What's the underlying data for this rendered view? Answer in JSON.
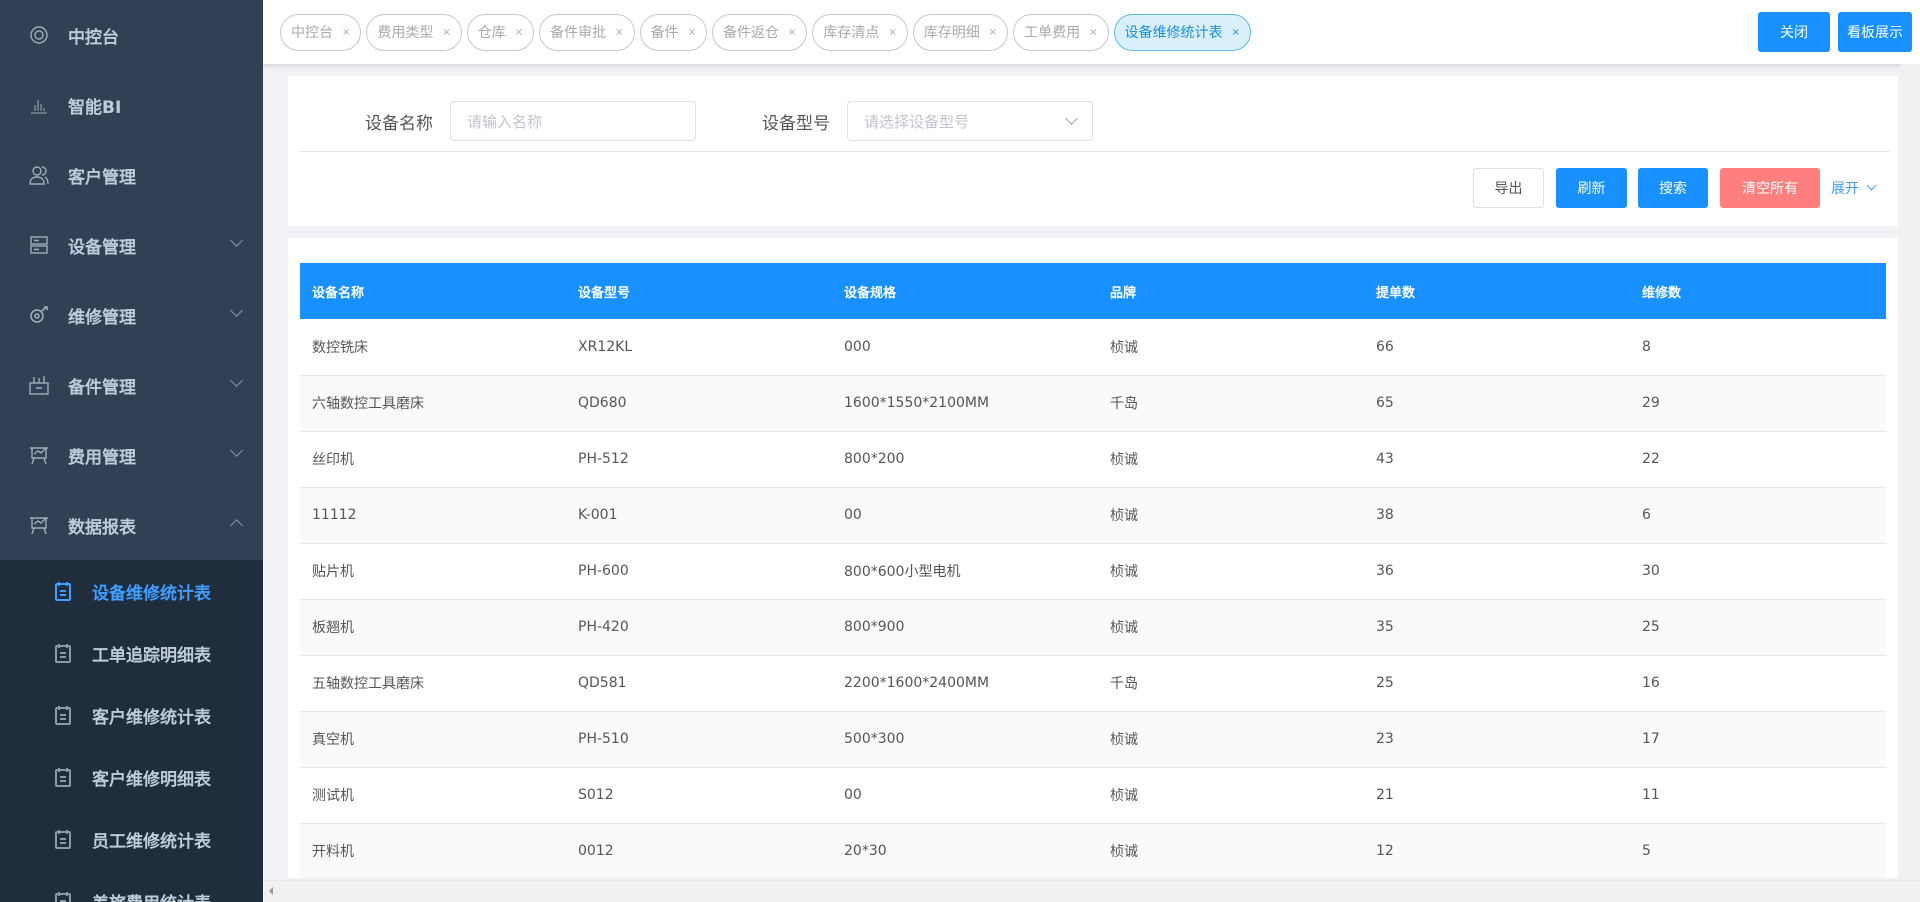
{
  "sidebar": {
    "items": [
      {
        "label": "中控台",
        "icon": "lifebuoy-icon"
      },
      {
        "label": "智能BI",
        "icon": "bar-chart-icon"
      },
      {
        "label": "客户管理",
        "icon": "users-icon"
      },
      {
        "label": "设备管理",
        "icon": "server-icon"
      },
      {
        "label": "维修管理",
        "icon": "wrench-icon"
      },
      {
        "label": "备件管理",
        "icon": "box-icon"
      },
      {
        "label": "费用管理",
        "icon": "board-icon"
      },
      {
        "label": "数据报表",
        "icon": "board-icon"
      }
    ],
    "sub_items": [
      {
        "label": "设备维修统计表",
        "active": true
      },
      {
        "label": "工单追踪明细表"
      },
      {
        "label": "客户维修统计表"
      },
      {
        "label": "客户维修明细表"
      },
      {
        "label": "员工维修统计表"
      },
      {
        "label": "差旅费用统计表"
      }
    ]
  },
  "tabs": [
    "中控台",
    "费用类型",
    "仓库",
    "备件审批",
    "备件",
    "备件返仓",
    "库存清点",
    "库存明细",
    "工单费用",
    "设备维修统计表"
  ],
  "active_tab": "设备维修统计表",
  "top_buttons": {
    "close": "关闭",
    "dashboard": "看板展示"
  },
  "filter": {
    "name_label": "设备名称",
    "name_placeholder": "请输入名称",
    "model_label": "设备型号",
    "model_placeholder": "请选择设备型号",
    "export": "导出",
    "refresh": "刷新",
    "search": "搜索",
    "clear": "清空所有",
    "expand": "展开"
  },
  "table": {
    "headers": [
      "设备名称",
      "设备型号",
      "设备规格",
      "品牌",
      "提单数",
      "维修数"
    ],
    "rows": [
      [
        "数控铣床",
        "XR12KL",
        "000",
        "桢诚",
        "66",
        "8"
      ],
      [
        "六轴数控工具磨床",
        "QD680",
        "1600*1550*2100MM",
        "千岛",
        "65",
        "29"
      ],
      [
        "丝印机",
        "PH-512",
        "800*200",
        "桢诚",
        "43",
        "22"
      ],
      [
        "11112",
        "K-001",
        "00",
        "桢诚",
        "38",
        "6"
      ],
      [
        "贴片机",
        "PH-600",
        "800*600小型电机",
        "桢诚",
        "36",
        "30"
      ],
      [
        "板翘机",
        "PH-420",
        "800*900",
        "桢诚",
        "35",
        "25"
      ],
      [
        "五轴数控工具磨床",
        "QD581",
        "2200*1600*2400MM",
        "千岛",
        "25",
        "16"
      ],
      [
        "真空机",
        "PH-510",
        "500*300",
        "桢诚",
        "23",
        "17"
      ],
      [
        "测试机",
        "S012",
        "00",
        "桢诚",
        "21",
        "11"
      ],
      [
        "开料机",
        "0012",
        "20*30",
        "桢诚",
        "12",
        "5"
      ]
    ]
  },
  "colors": {
    "sidebar": "#304156",
    "submenu": "#1f2d3d",
    "primary": "#1890ff",
    "danger": "#ff7f7f",
    "active_text": "#409eff"
  }
}
